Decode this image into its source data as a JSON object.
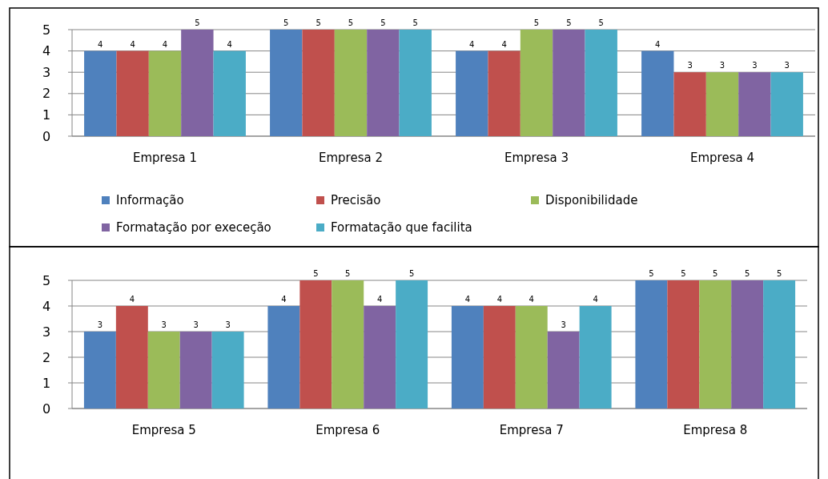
{
  "chart_data": [
    {
      "type": "bar",
      "categories": [
        "Empresa 1",
        "Empresa 2",
        "Empresa 3",
        "Empresa 4"
      ],
      "ylim": [
        0,
        5
      ],
      "yticks": [
        0,
        1,
        2,
        3,
        4,
        5
      ],
      "grid": "y",
      "data_labels": true,
      "legend": "bottom",
      "series": [
        {
          "name": "Informação",
          "color": "#4f81bd",
          "values": [
            4,
            5,
            4,
            4
          ]
        },
        {
          "name": "Precisão",
          "color": "#c0504d",
          "values": [
            4,
            5,
            4,
            3
          ]
        },
        {
          "name": "Disponibilidade",
          "color": "#9bbb59",
          "values": [
            4,
            5,
            5,
            3
          ]
        },
        {
          "name": "Formatação por execeção",
          "color": "#8064a2",
          "values": [
            5,
            5,
            5,
            3
          ]
        },
        {
          "name": "Formatação que facilita",
          "color": "#4bacc6",
          "values": [
            4,
            5,
            5,
            3
          ]
        }
      ]
    },
    {
      "type": "bar",
      "categories": [
        "Empresa 5",
        "Empresa 6",
        "Empresa 7",
        "Empresa 8"
      ],
      "ylim": [
        0,
        5
      ],
      "yticks": [
        0,
        1,
        2,
        3,
        4,
        5
      ],
      "grid": "y",
      "data_labels": true,
      "series": [
        {
          "color": "#4f81bd",
          "values": [
            3,
            4,
            4,
            5
          ]
        },
        {
          "color": "#c0504d",
          "values": [
            4,
            5,
            4,
            5
          ]
        },
        {
          "color": "#9bbb59",
          "values": [
            3,
            5,
            4,
            5
          ]
        },
        {
          "color": "#8064a2",
          "values": [
            3,
            4,
            3,
            5
          ]
        },
        {
          "color": "#4bacc6",
          "values": [
            3,
            5,
            4,
            5
          ]
        }
      ]
    }
  ]
}
